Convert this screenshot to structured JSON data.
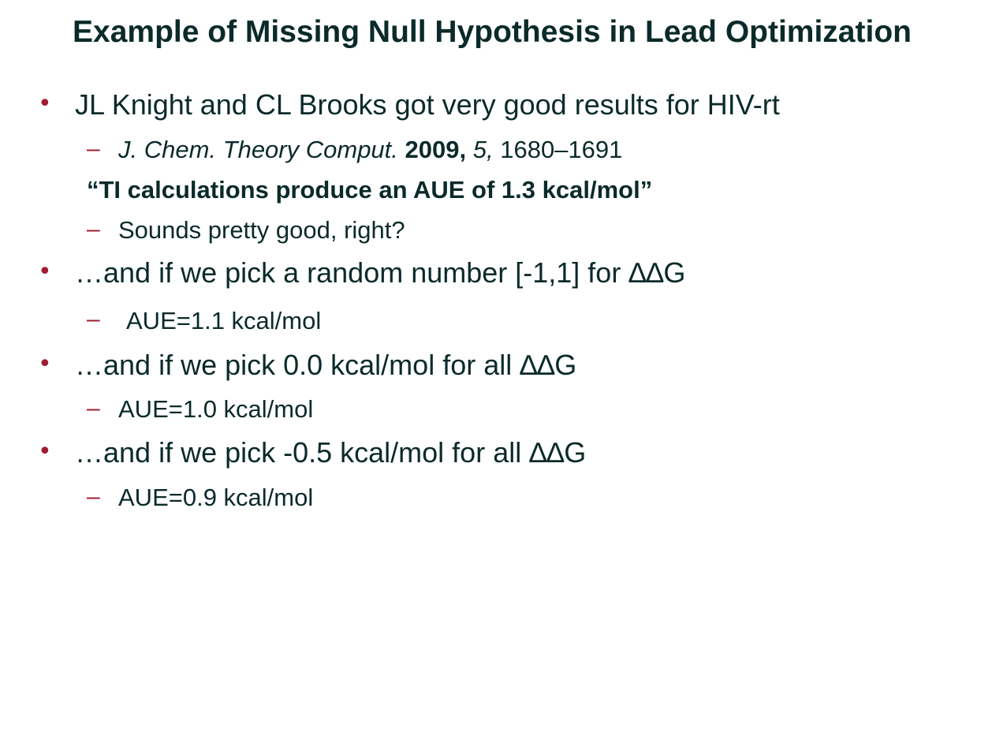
{
  "title": "Example of Missing Null Hypothesis in Lead Optimization",
  "bullets": [
    {
      "text": "JL Knight and CL Brooks got very good results for HIV-rt",
      "sub": {
        "journal": "J. Chem. Theory Comput.",
        "year": "2009,",
        "volume": "5,",
        "pages": "1680–1691"
      },
      "quote": "“TI calculations produce an AUE of 1.3 kcal/mol”",
      "sub2": "Sounds pretty good, right?"
    },
    {
      "text": "…and if we pick a random number [-1,1] for ∆∆G",
      "sub": "AUE=1.1 kcal/mol"
    },
    {
      "text": "…and if we pick 0.0 kcal/mol for all ∆∆G",
      "sub": "AUE=1.0 kcal/mol"
    },
    {
      "text": "…and if we pick -0.5 kcal/mol for all ∆∆G",
      "sub": "AUE=0.9 kcal/mol"
    }
  ],
  "colors": {
    "text": "#0b2a2a",
    "bullet": "#a01d33"
  }
}
